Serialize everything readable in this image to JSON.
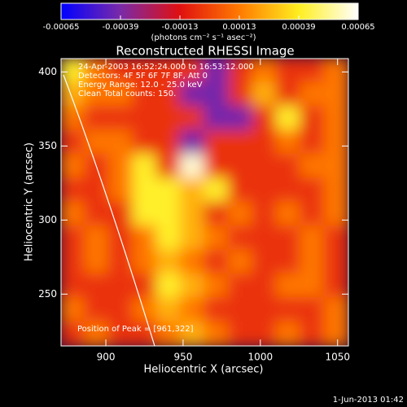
{
  "chart_data": {
    "type": "heatmap",
    "title": "Reconstructed RHESSI Image",
    "x_label": "Heliocentric X (arcsec)",
    "y_label": "Heliocentric Y (arcsec)",
    "colorbar_label": "(photons cm⁻² s⁻¹ asec⁻²)",
    "annotations": [
      "24-Apr-2003 16:52:24.000 to 16:53:12.000",
      "Detectors: 4F 5F 6F 7F 8F, Att 0",
      "Energy Range: 12.0 - 25.0 keV",
      "Clean     Total counts: 150."
    ],
    "peak_label": "Position of Peak = [961,322]",
    "footer": "1-Jun-2013 01:42",
    "xlim": [
      871,
      1057
    ],
    "ylim": [
      215,
      409
    ],
    "xticks": [
      900,
      950,
      1000,
      1050
    ],
    "yticks": [
      250,
      300,
      350,
      400
    ],
    "zlim": [
      -0.00065,
      0.00065
    ],
    "zticks": [
      -0.00065,
      -0.00039,
      -0.00013,
      0.00013,
      0.00039,
      0.00065
    ],
    "colorscale": [
      "#0000ff",
      "#7a2aa8",
      "#e01010",
      "#ff7a00",
      "#ffee20",
      "#ffffff"
    ],
    "z": [
      [
        0.0004,
        0.00012,
        -5e-05,
        -5e-05,
        -5e-05,
        -5e-05,
        -0.0004,
        -5e-05,
        0.00012,
        -5e-05,
        -5e-05,
        0.00012
      ],
      [
        0.00025,
        0.00012,
        0.00012,
        -5e-05,
        -5e-05,
        -0.0004,
        -0.0004,
        -5e-05,
        0.00025,
        -5e-05,
        0.00012,
        0.00012
      ],
      [
        0.00012,
        -5e-05,
        -5e-05,
        -5e-05,
        -5e-05,
        -5e-05,
        -0.0004,
        -0.0004,
        -5e-05,
        0.0004,
        -5e-05,
        0.00012
      ],
      [
        -5e-05,
        0.00012,
        0.00012,
        -5e-05,
        -5e-05,
        -0.0004,
        -5e-05,
        -5e-05,
        -5e-05,
        0.00012,
        -5e-05,
        0.00012
      ],
      [
        0.00012,
        -5e-05,
        0.00012,
        0.0004,
        -5e-05,
        0.0006,
        -5e-05,
        -5e-05,
        -5e-05,
        -5e-05,
        0.00012,
        0.00012
      ],
      [
        -5e-05,
        -5e-05,
        0.00012,
        0.0004,
        0.0004,
        0.00025,
        0.0004,
        -5e-05,
        -5e-05,
        -5e-05,
        -5e-05,
        0.00012
      ],
      [
        0.00012,
        -5e-05,
        -5e-05,
        0.0004,
        0.0004,
        0.00025,
        -5e-05,
        0.00012,
        -5e-05,
        0.00012,
        -5e-05,
        0.00012
      ],
      [
        -5e-05,
        0.00012,
        -5e-05,
        0.00012,
        0.0004,
        0.00025,
        0.00012,
        -5e-05,
        -5e-05,
        -5e-05,
        0.00012,
        -5e-05
      ],
      [
        -5e-05,
        0.00012,
        -5e-05,
        0.00012,
        0.00025,
        0.00012,
        -5e-05,
        0.00012,
        -5e-05,
        -5e-05,
        0.00012,
        -5e-05
      ],
      [
        -5e-05,
        -5e-05,
        -5e-05,
        -5e-05,
        0.0004,
        0.00025,
        0.00012,
        -5e-05,
        -5e-05,
        0.00012,
        0.00012,
        -5e-05
      ],
      [
        0.00012,
        -5e-05,
        -5e-05,
        0.00012,
        0.00025,
        0.00012,
        -5e-05,
        -5e-05,
        -5e-05,
        -5e-05,
        -5e-05,
        0.00012
      ],
      [
        -5e-05,
        0.00012,
        -5e-05,
        -5e-05,
        0.00012,
        0.00025,
        0.00012,
        -5e-05,
        -5e-05,
        0.00012,
        -5e-05,
        0.00012
      ]
    ]
  }
}
